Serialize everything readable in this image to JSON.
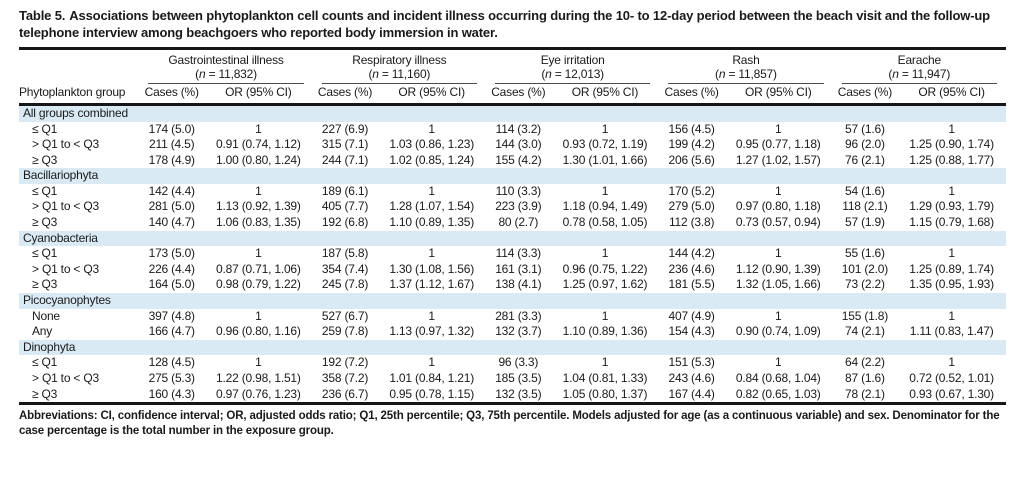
{
  "title": {
    "label": "Table 5.",
    "text": "Associations between phytoplankton cell counts and incident illness occurring during the 10- to 12-day period between the beach visit and the follow-up telephone interview among beachgoers who reported body immersion in water."
  },
  "colors": {
    "band": "#d9eaf4",
    "rule": "#161616",
    "text": "#1a1a1a"
  },
  "table": {
    "row_header": "Phytoplankton group",
    "sub_cases": "Cases (%)",
    "sub_or": "OR (95% CI)",
    "illnesses": [
      {
        "name": "Gastrointestinal illness",
        "n_pre": "(",
        "n_char": "n",
        "n_rest": " = 11,832)"
      },
      {
        "name": "Respiratory illness",
        "n_pre": "(",
        "n_char": "n",
        "n_rest": " = 11,160)"
      },
      {
        "name": "Eye irritation",
        "n_pre": "(",
        "n_char": "n",
        "n_rest": " = 12,013)"
      },
      {
        "name": "Rash",
        "n_pre": "(",
        "n_char": "n",
        "n_rest": " = 11,857)"
      },
      {
        "name": "Earache",
        "n_pre": "(",
        "n_char": "n",
        "n_rest": " = 11,947)"
      }
    ],
    "groups": [
      {
        "name": "All groups combined",
        "rows": [
          {
            "label": "≤ Q1",
            "cells": [
              "174 (5.0)",
              "1",
              "227 (6.9)",
              "1",
              "114 (3.2)",
              "1",
              "156 (4.5)",
              "1",
              "57 (1.6)",
              "1"
            ]
          },
          {
            "label": "> Q1 to < Q3",
            "cells": [
              "211 (4.5)",
              "0.91 (0.74, 1.12)",
              "315 (7.1)",
              "1.03 (0.86, 1.23)",
              "144 (3.0)",
              "0.93 (0.72, 1.19)",
              "199 (4.2)",
              "0.95 (0.77, 1.18)",
              "96 (2.0)",
              "1.25 (0.90, 1.74)"
            ]
          },
          {
            "label": "≥ Q3",
            "cells": [
              "178 (4.9)",
              "1.00 (0.80, 1.24)",
              "244 (7.1)",
              "1.02 (0.85, 1.24)",
              "155 (4.2)",
              "1.30 (1.01, 1.66)",
              "206 (5.6)",
              "1.27 (1.02, 1.57)",
              "76 (2.1)",
              "1.25 (0.88, 1.77)"
            ]
          }
        ]
      },
      {
        "name": "Bacillariophyta",
        "rows": [
          {
            "label": "≤ Q1",
            "cells": [
              "142 (4.4)",
              "1",
              "189 (6.1)",
              "1",
              "110 (3.3)",
              "1",
              "170 (5.2)",
              "1",
              "54 (1.6)",
              "1"
            ]
          },
          {
            "label": "> Q1 to < Q3",
            "cells": [
              "281 (5.0)",
              "1.13 (0.92, 1.39)",
              "405 (7.7)",
              "1.28 (1.07, 1.54)",
              "223 (3.9)",
              "1.18 (0.94, 1.49)",
              "279 (5.0)",
              "0.97 (0.80, 1.18)",
              "118 (2.1)",
              "1.29 (0.93, 1.79)"
            ]
          },
          {
            "label": "≥ Q3",
            "cells": [
              "140 (4.7)",
              "1.06 (0.83, 1.35)",
              "192 (6.8)",
              "1.10 (0.89, 1.35)",
              "80 (2.7)",
              "0.78 (0.58, 1.05)",
              "112 (3.8)",
              "0.73 (0.57, 0.94)",
              "57 (1.9)",
              "1.15 (0.79, 1.68)"
            ]
          }
        ]
      },
      {
        "name": "Cyanobacteria",
        "rows": [
          {
            "label": "≤ Q1",
            "cells": [
              "173 (5.0)",
              "1",
              "187 (5.8)",
              "1",
              "114 (3.3)",
              "1",
              "144 (4.2)",
              "1",
              "55 (1.6)",
              "1"
            ]
          },
          {
            "label": "> Q1 to < Q3",
            "cells": [
              "226 (4.4)",
              "0.87 (0.71, 1.06)",
              "354 (7.4)",
              "1.30 (1.08, 1.56)",
              "161 (3.1)",
              "0.96 (0.75, 1.22)",
              "236 (4.6)",
              "1.12 (0.90, 1.39)",
              "101 (2.0)",
              "1.25 (0.89, 1.74)"
            ]
          },
          {
            "label": "≥ Q3",
            "cells": [
              "164 (5.0)",
              "0.98 (0.79, 1.22)",
              "245 (7.8)",
              "1.37 (1.12, 1.67)",
              "138 (4.1)",
              "1.25 (0.97, 1.62)",
              "181 (5.5)",
              "1.32 (1.05, 1.66)",
              "73 (2.2)",
              "1.35 (0.95, 1.93)"
            ]
          }
        ]
      },
      {
        "name": "Picocyanophytes",
        "rows": [
          {
            "label": "None",
            "cells": [
              "397 (4.8)",
              "1",
              "527 (6.7)",
              "1",
              "281 (3.3)",
              "1",
              "407 (4.9)",
              "1",
              "155 (1.8)",
              "1"
            ]
          },
          {
            "label": "Any",
            "cells": [
              "166 (4.7)",
              "0.96 (0.80, 1.16)",
              "259 (7.8)",
              "1.13 (0.97, 1.32)",
              "132 (3.7)",
              "1.10 (0.89, 1.36)",
              "154 (4.3)",
              "0.90 (0.74, 1.09)",
              "74 (2.1)",
              "1.11 (0.83, 1.47)"
            ]
          }
        ]
      },
      {
        "name": "Dinophyta",
        "rows": [
          {
            "label": "≤ Q1",
            "cells": [
              "128 (4.5)",
              "1",
              "192 (7.2)",
              "1",
              "96 (3.3)",
              "1",
              "151 (5.3)",
              "1",
              "64 (2.2)",
              "1"
            ]
          },
          {
            "label": "> Q1 to < Q3",
            "cells": [
              "275 (5.3)",
              "1.22 (0.98, 1.51)",
              "358 (7.2)",
              "1.01 (0.84, 1.21)",
              "185 (3.5)",
              "1.04 (0.81, 1.33)",
              "243 (4.6)",
              "0.84 (0.68, 1.04)",
              "87 (1.6)",
              "0.72 (0.52, 1.01)"
            ]
          },
          {
            "label": "≥ Q3",
            "cells": [
              "160 (4.3)",
              "0.97 (0.76, 1.23)",
              "236 (6.7)",
              "0.95 (0.78, 1.15)",
              "132 (3.5)",
              "1.05 (0.80, 1.37)",
              "167 (4.4)",
              "0.82 (0.65, 1.03)",
              "78 (2.1)",
              "0.93 (0.67, 1.30)"
            ]
          }
        ]
      }
    ]
  },
  "footnote": "Abbreviations: CI, confidence interval; OR, adjusted odds ratio; Q1, 25th percentile; Q3, 75th percentile. Models adjusted for age (as a continuous variable) and sex. Denominator for the case percentage is the total number in the exposure group."
}
